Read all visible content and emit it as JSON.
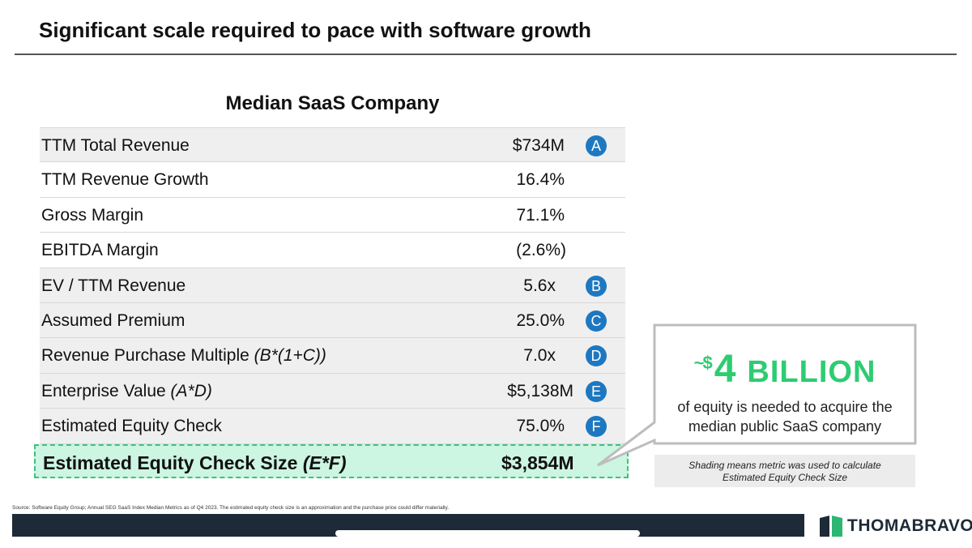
{
  "header": {
    "title": "Significant scale required to pace with software growth"
  },
  "table": {
    "title": "Median SaaS Company",
    "rows": [
      {
        "label": "TTM Total Revenue",
        "formula": "",
        "value": "$734M",
        "badge": "A"
      },
      {
        "label": "TTM Revenue Growth",
        "formula": "",
        "value": "16.4%",
        "badge": ""
      },
      {
        "label": "Gross Margin",
        "formula": "",
        "value": "71.1%",
        "badge": ""
      },
      {
        "label": "EBITDA Margin",
        "formula": "",
        "value": "(2.6%)",
        "badge": ""
      },
      {
        "label": "EV / TTM Revenue",
        "formula": "",
        "value": "5.6x",
        "badge": "B"
      },
      {
        "label": "Assumed Premium",
        "formula": "",
        "value": "25.0%",
        "badge": "C"
      },
      {
        "label": "Revenue Purchase Multiple",
        "formula": "(B*(1+C))",
        "value": "7.0x",
        "badge": "D"
      },
      {
        "label": "Enterprise Value",
        "formula": "(A*D)",
        "value": "$5,138M",
        "badge": "E"
      },
      {
        "label": "Estimated Equity Check",
        "formula": "",
        "value": "75.0%",
        "badge": "F"
      }
    ],
    "total": {
      "label": "Estimated Equity Check Size",
      "formula": "(E*F)",
      "value": "$3,854M"
    }
  },
  "callout": {
    "tilde": "~",
    "dollar": "$",
    "amount": "4",
    "unit": "BILLION",
    "text_line1": "of equity is needed to acquire the",
    "text_line2": "median public SaaS company"
  },
  "note": {
    "line1": "Shading means metric was used to calculate",
    "line2": "Estimated Equity Check Size"
  },
  "footer": {
    "source": "Source: Software Equity Group; Annual SEG SaaS Index Median Metrics as of Q4 2023. The estimated equity check size is an approximation and the purchase price could differ materially.",
    "logo_text": "THOMABRAVO"
  },
  "colors": {
    "badge": "#1d78c1",
    "accent_green": "#2ecc71",
    "highlight_fill": "#ccf5e2",
    "highlight_border": "#3cc27f",
    "footer_bar": "#1d2a38",
    "logo_green": "#2bb673"
  }
}
